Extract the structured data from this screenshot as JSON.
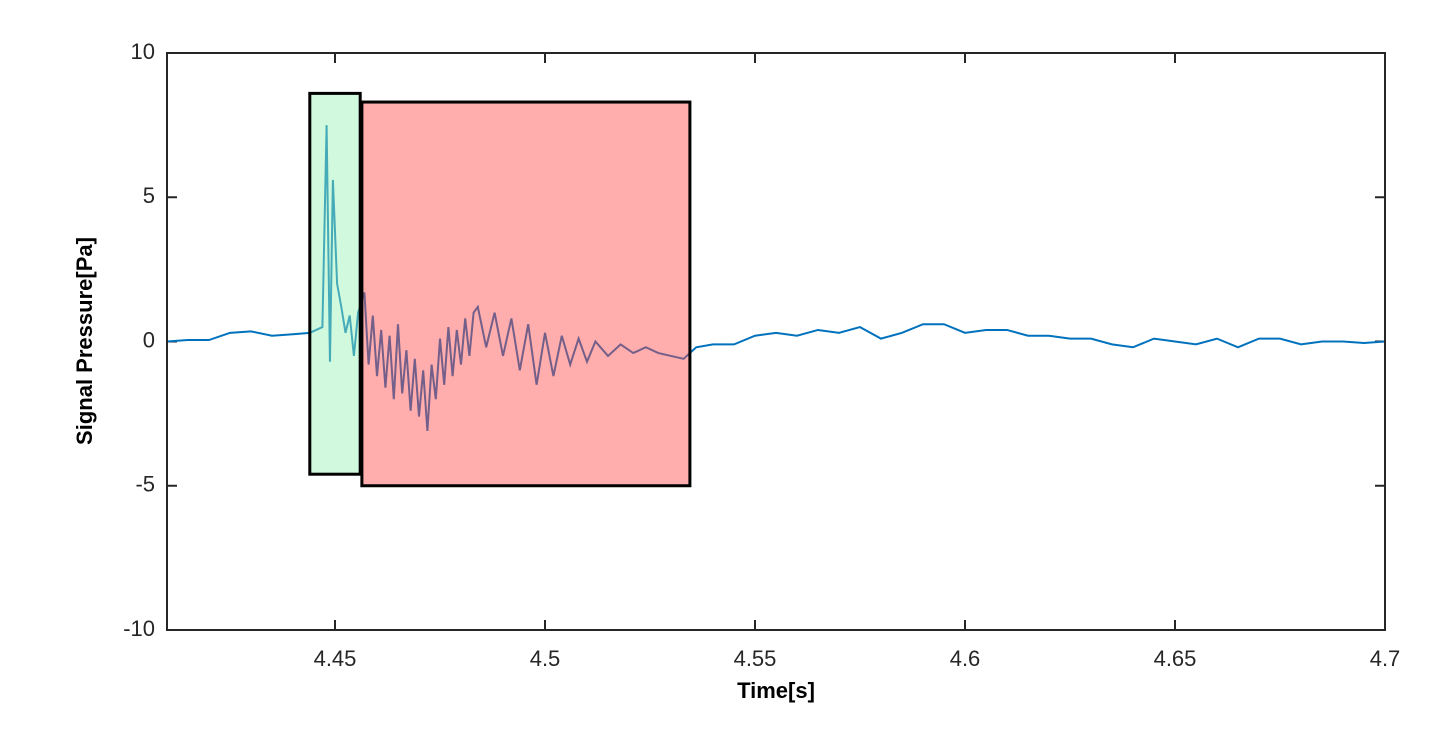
{
  "chart_data": {
    "type": "line",
    "xlabel": "Time[s]",
    "ylabel": "Signal Pressure[Pa]",
    "xlim": [
      4.41,
      4.7
    ],
    "ylim": [
      -10,
      10
    ],
    "xticks": [
      4.45,
      4.5,
      4.55,
      4.6,
      4.65,
      4.7
    ],
    "yticks": [
      -10,
      -5,
      0,
      5,
      10
    ],
    "regions": [
      {
        "x": [
          4.444,
          4.456
        ],
        "y": [
          -4.6,
          8.6
        ],
        "color": "#9af2b4"
      },
      {
        "x": [
          4.4564,
          4.5345
        ],
        "y": [
          -5.0,
          8.3
        ],
        "color": "#ff4a4a"
      }
    ],
    "series": [
      {
        "color": "#0072bd",
        "x": [
          4.41,
          4.415,
          4.42,
          4.425,
          4.43,
          4.435,
          4.44,
          4.444,
          4.447,
          4.448,
          4.4488,
          4.4495,
          4.4505,
          4.4515,
          4.4525,
          4.4535,
          4.4545,
          4.4555,
          4.457,
          4.458,
          4.459,
          4.46,
          4.461,
          4.462,
          4.463,
          4.464,
          4.465,
          4.466,
          4.467,
          4.468,
          4.469,
          4.47,
          4.471,
          4.472,
          4.473,
          4.474,
          4.475,
          4.476,
          4.477,
          4.478,
          4.479,
          4.48,
          4.481,
          4.482,
          4.483,
          4.484,
          4.486,
          4.488,
          4.49,
          4.492,
          4.494,
          4.496,
          4.498,
          4.5,
          4.502,
          4.504,
          4.506,
          4.508,
          4.51,
          4.512,
          4.515,
          4.518,
          4.521,
          4.524,
          4.527,
          4.53,
          4.533,
          4.536,
          4.54,
          4.545,
          4.55,
          4.555,
          4.56,
          4.565,
          4.57,
          4.575,
          4.58,
          4.585,
          4.59,
          4.595,
          4.6,
          4.605,
          4.61,
          4.615,
          4.62,
          4.625,
          4.63,
          4.635,
          4.64,
          4.645,
          4.65,
          4.655,
          4.66,
          4.665,
          4.67,
          4.675,
          4.68,
          4.685,
          4.69,
          4.695,
          4.7
        ],
        "values": [
          0,
          0.05,
          0.05,
          0.3,
          0.35,
          0.2,
          0.25,
          0.3,
          0.5,
          7.5,
          -0.7,
          5.6,
          2,
          1.2,
          0.3,
          0.9,
          -0.5,
          1.0,
          1.7,
          -0.8,
          0.9,
          -1.2,
          0.4,
          -1.6,
          0.2,
          -2.0,
          0.6,
          -1.8,
          -0.3,
          -2.4,
          -0.6,
          -2.6,
          -1.0,
          -3.1,
          -0.8,
          -2.0,
          0.1,
          -1.5,
          0.5,
          -1.2,
          0.4,
          -0.8,
          0.8,
          -0.5,
          1.0,
          1.2,
          -0.2,
          1.0,
          -0.5,
          0.8,
          -1.0,
          0.6,
          -1.5,
          0.3,
          -1.2,
          0.2,
          -0.8,
          0.1,
          -0.7,
          0.0,
          -0.5,
          -0.1,
          -0.4,
          -0.2,
          -0.4,
          -0.5,
          -0.6,
          -0.2,
          -0.1,
          -0.1,
          0.2,
          0.3,
          0.2,
          0.4,
          0.3,
          0.5,
          0.1,
          0.3,
          0.6,
          0.6,
          0.3,
          0.4,
          0.4,
          0.2,
          0.2,
          0.1,
          0.1,
          -0.1,
          -0.2,
          0.1,
          0.0,
          -0.1,
          0.1,
          -0.2,
          0.1,
          0.1,
          -0.1,
          0.0,
          0.0,
          -0.05,
          0
        ]
      }
    ]
  }
}
